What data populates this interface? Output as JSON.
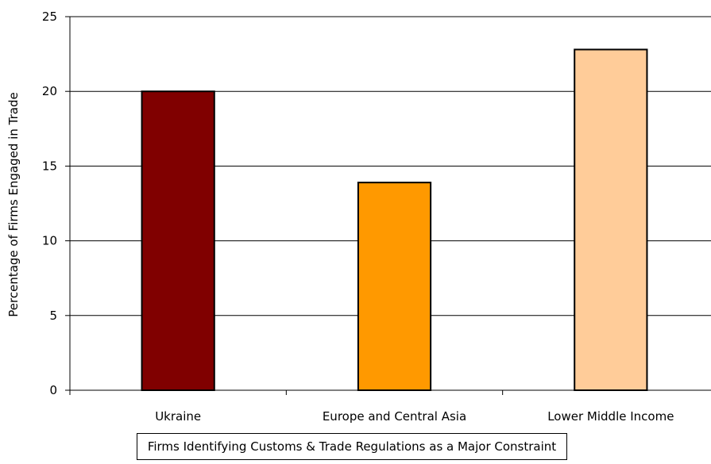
{
  "chart_data": {
    "type": "bar",
    "categories": [
      "Ukraine",
      "Europe and Central Asia",
      "Lower Middle Income"
    ],
    "values": [
      20,
      13.9,
      22.8
    ],
    "colors": [
      "#800000",
      "#ff9900",
      "#ffcc99"
    ],
    "ylabel": "Percentage of Firms Engaged in Trade",
    "ylim": [
      0,
      25
    ],
    "yticks": [
      0,
      5,
      10,
      15,
      20,
      25
    ],
    "grid": true,
    "legend": "Firms Identifying Customs & Trade Regulations as a Major Constraint",
    "legend_position": "bottom"
  }
}
